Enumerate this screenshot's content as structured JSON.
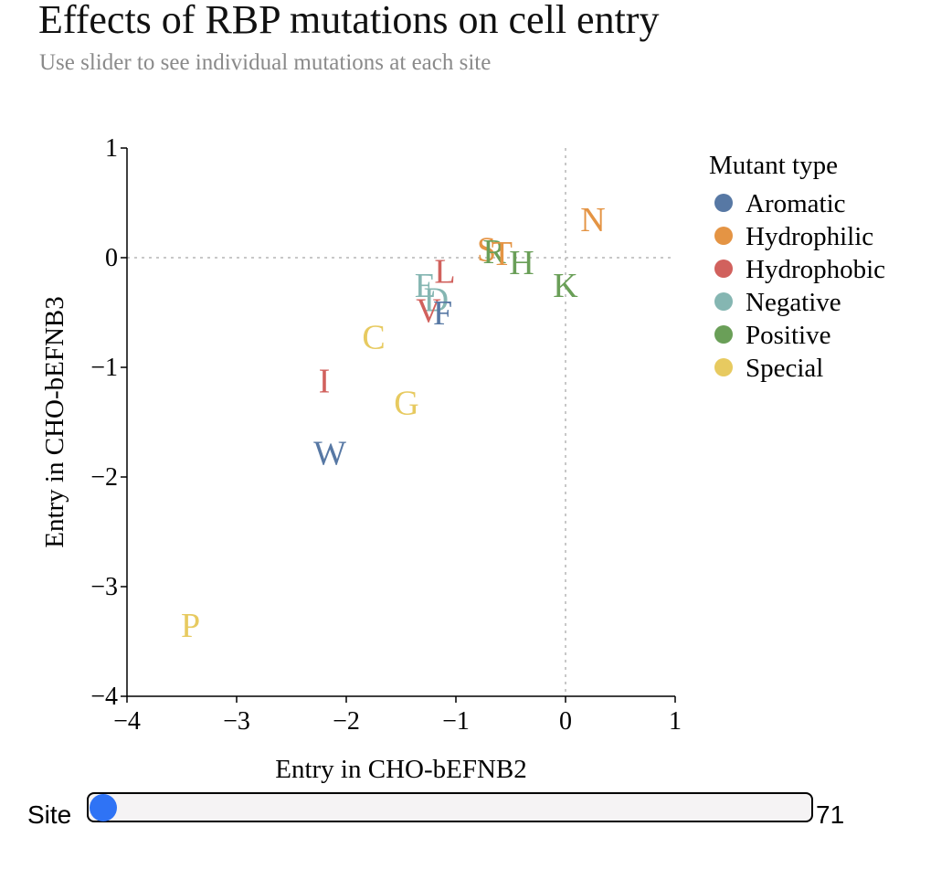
{
  "header": {
    "title": "Effects of RBP mutations on cell entry",
    "subtitle": "Use slider to see individual mutations at each site"
  },
  "slider": {
    "label": "Site",
    "value": "71"
  },
  "chart_data": {
    "type": "scatter",
    "xlabel": "Entry in CHO-bEFNB2",
    "ylabel": "Entry in CHO-bEFNB3",
    "xlim": [
      -4,
      1
    ],
    "ylim": [
      -4,
      1
    ],
    "x_ticks": [
      "−4",
      "−3",
      "−2",
      "−1",
      "0",
      "1"
    ],
    "y_ticks": [
      "−4",
      "−3",
      "−2",
      "−1",
      "0",
      "1"
    ],
    "reference_lines": {
      "x": 0,
      "y": 0
    },
    "legend": {
      "title": "Mutant type",
      "position": "right",
      "entries": [
        {
          "name": "Aromatic",
          "color": "#5778a4"
        },
        {
          "name": "Hydrophilic",
          "color": "#e49444"
        },
        {
          "name": "Hydrophobic",
          "color": "#d1615d"
        },
        {
          "name": "Negative",
          "color": "#85b6b2"
        },
        {
          "name": "Positive",
          "color": "#6a9f58"
        },
        {
          "name": "Special",
          "color": "#e7ca60"
        }
      ]
    },
    "points": [
      {
        "label": "N",
        "x": 0.25,
        "y": 0.35,
        "type": "Hydrophilic"
      },
      {
        "label": "S",
        "x": -0.72,
        "y": 0.08,
        "type": "Hydrophilic"
      },
      {
        "label": "R",
        "x": -0.65,
        "y": 0.06,
        "type": "Positive"
      },
      {
        "label": "T",
        "x": -0.58,
        "y": 0.04,
        "type": "Hydrophilic"
      },
      {
        "label": "H",
        "x": -0.4,
        "y": -0.04,
        "type": "Positive"
      },
      {
        "label": "K",
        "x": 0.0,
        "y": -0.25,
        "type": "Positive"
      },
      {
        "label": "L",
        "x": -1.1,
        "y": -0.12,
        "type": "Hydrophobic"
      },
      {
        "label": "E",
        "x": -1.28,
        "y": -0.25,
        "type": "Negative"
      },
      {
        "label": "D",
        "x": -1.18,
        "y": -0.38,
        "type": "Negative"
      },
      {
        "label": "V",
        "x": -1.25,
        "y": -0.48,
        "type": "Hydrophobic"
      },
      {
        "label": "F",
        "x": -1.12,
        "y": -0.5,
        "type": "Aromatic"
      },
      {
        "label": "C",
        "x": -1.75,
        "y": -0.72,
        "type": "Special"
      },
      {
        "label": "I",
        "x": -2.2,
        "y": -1.12,
        "type": "Hydrophobic"
      },
      {
        "label": "G",
        "x": -1.45,
        "y": -1.32,
        "type": "Special"
      },
      {
        "label": "W",
        "x": -2.15,
        "y": -1.78,
        "type": "Aromatic"
      },
      {
        "label": "P",
        "x": -3.42,
        "y": -3.35,
        "type": "Special"
      }
    ]
  }
}
